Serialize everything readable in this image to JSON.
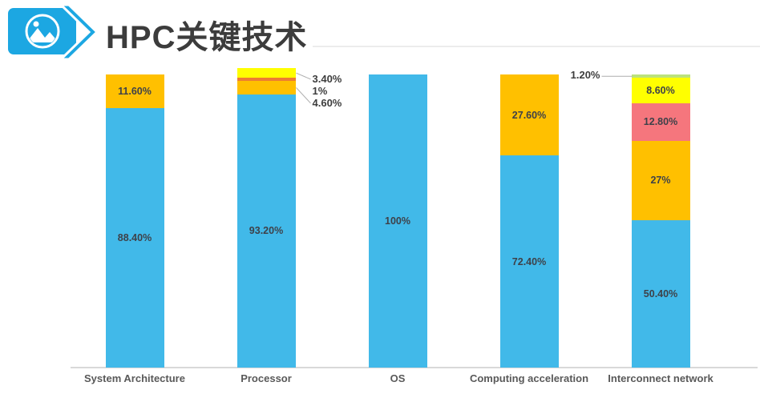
{
  "header": {
    "title": "HPC关键技术",
    "icon": "picture-icon",
    "accent_color": "#1CA7E2",
    "title_color": "#3C3C3C"
  },
  "colors": {
    "bar_blue": "#41B9E9",
    "bar_orange": "#FFC000",
    "bar_dark_orange": "#ED7D31",
    "bar_red": "#F5767D",
    "bar_yellow": "#FFFF00",
    "bar_green": "#BCE27B",
    "axis_line": "#D9D9D9",
    "leader_line": "#ADADAD",
    "category_label": "#595959"
  },
  "chart_data": {
    "type": "bar",
    "stacked": true,
    "unit": "%",
    "ylim": [
      0,
      100
    ],
    "grid": false,
    "legend": "none",
    "title": "HPC关键技术",
    "xlabel": "",
    "ylabel": "",
    "categories": [
      "System Architecture",
      "Processor",
      "OS",
      "Computing acceleration",
      "Interconnect network"
    ],
    "bars": [
      {
        "category": "System Architecture",
        "segments": [
          {
            "value": 88.4,
            "label": "88.40%",
            "color": "#41B9E9",
            "label_pos": "inside"
          },
          {
            "value": 11.6,
            "label": "11.60%",
            "color": "#FFC000",
            "label_pos": "inside"
          }
        ]
      },
      {
        "category": "Processor",
        "segments": [
          {
            "value": 93.2,
            "label": "93.20%",
            "color": "#41B9E9",
            "label_pos": "inside"
          },
          {
            "value": 4.6,
            "label": "4.60%",
            "color": "#FFC000",
            "label_pos": "callout-right",
            "leader": true
          },
          {
            "value": 1,
            "label": "1%",
            "color": "#ED7D31",
            "label_pos": "callout-right",
            "leader": false
          },
          {
            "value": 3.4,
            "label": "3.40%",
            "color": "#FFFF00",
            "label_pos": "callout-right",
            "leader": true
          }
        ]
      },
      {
        "category": "OS",
        "segments": [
          {
            "value": 100,
            "label": "100%",
            "color": "#41B9E9",
            "label_pos": "inside"
          }
        ]
      },
      {
        "category": "Computing acceleration",
        "segments": [
          {
            "value": 72.4,
            "label": "72.40%",
            "color": "#41B9E9",
            "label_pos": "inside"
          },
          {
            "value": 27.6,
            "label": "27.60%",
            "color": "#FFC000",
            "label_pos": "inside"
          }
        ]
      },
      {
        "category": "Interconnect network",
        "segments": [
          {
            "value": 50.4,
            "label": "50.40%",
            "color": "#41B9E9",
            "label_pos": "inside"
          },
          {
            "value": 27,
            "label": "27%",
            "color": "#FFC000",
            "label_pos": "inside"
          },
          {
            "value": 12.8,
            "label": "12.80%",
            "color": "#F5767D",
            "label_pos": "inside"
          },
          {
            "value": 8.6,
            "label": "8.60%",
            "color": "#FFFF00",
            "label_pos": "inside"
          },
          {
            "value": 1.2,
            "label": "1.20%",
            "color": "#BCE27B",
            "label_pos": "callout-left",
            "leader": true
          }
        ]
      }
    ]
  }
}
